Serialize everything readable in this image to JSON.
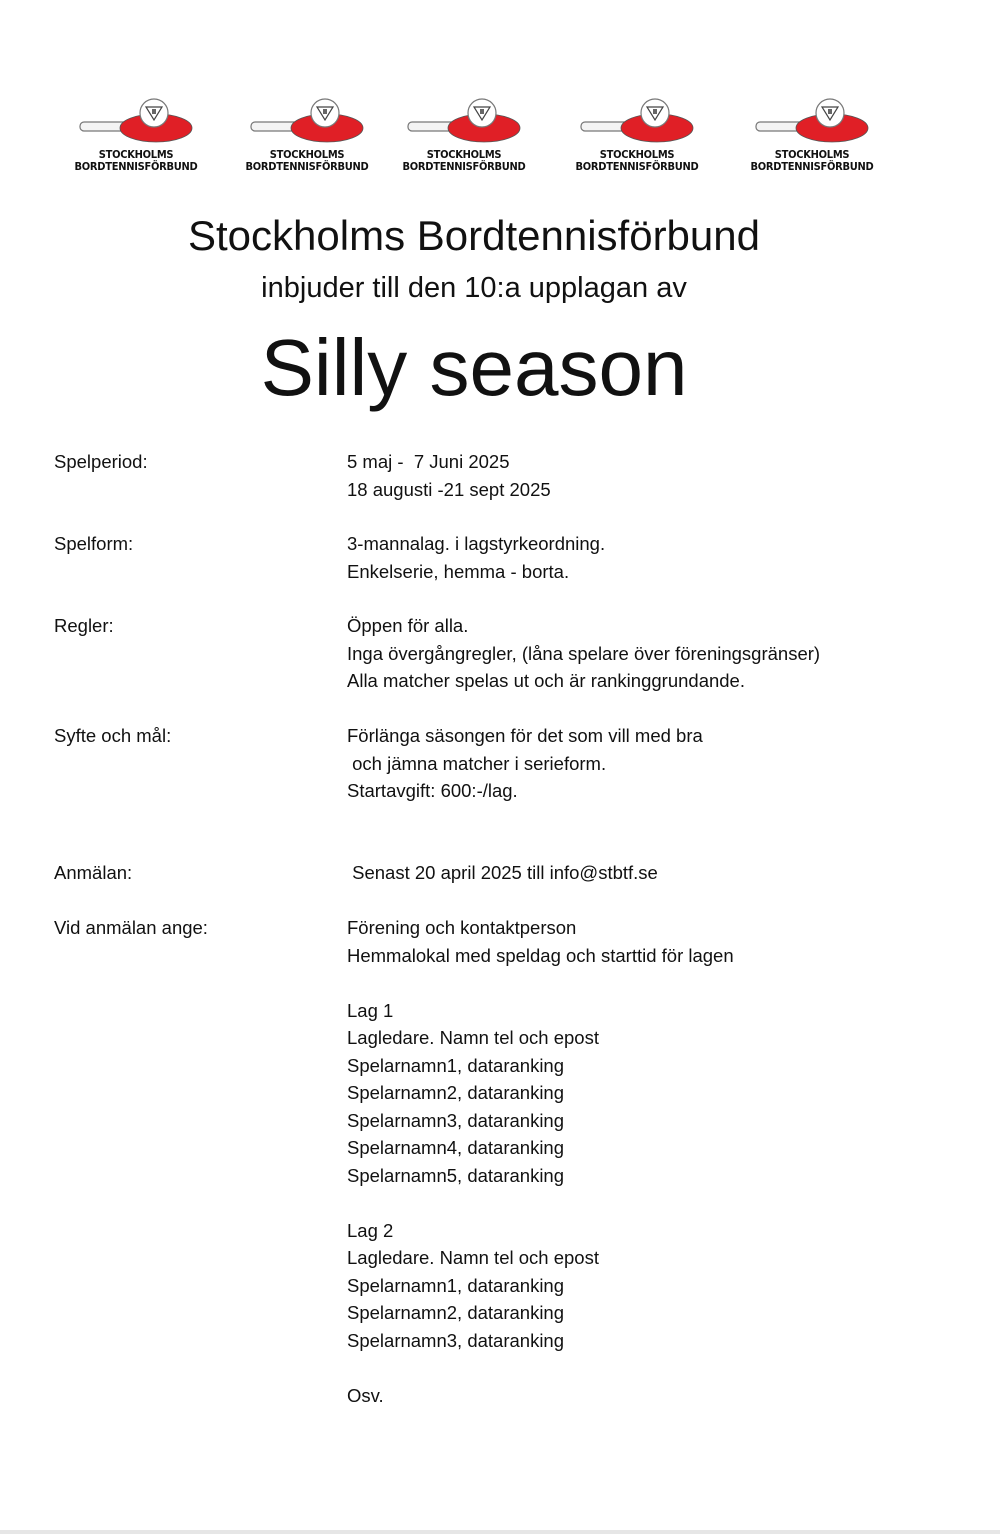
{
  "logos": [
    {
      "line1": "STOCKHOLMS",
      "line2": "BORDTENNISFÖRBUND"
    },
    {
      "line1": "STOCKHOLMS",
      "line2": "BORDTENNISFÖRBUND"
    },
    {
      "line1": "STOCKHOLMS",
      "line2": "BORDTENNISFÖRBUND"
    },
    {
      "line1": "STOCKHOLMS",
      "line2": "BORDTENNISFÖRBUND"
    },
    {
      "line1": "STOCKHOLMS",
      "line2": "BORDTENNISFÖRBUND"
    }
  ],
  "colors": {
    "logo_red": "#e01f26"
  },
  "header": {
    "title": "Stockholms Bordtennisförbund",
    "subtitle": "inbjuder till den 10:a upplagan av",
    "event": "Silly season"
  },
  "sections": [
    {
      "label": "Spelperiod:",
      "lines": [
        "5 maj -  7 Juni 2025",
        "18 augusti -21 sept 2025"
      ]
    },
    {
      "label": "Spelform:",
      "lines": [
        "3-mannalag. i lagstyrkeordning.",
        "Enkelserie, hemma - borta."
      ]
    },
    {
      "label": "Regler:",
      "lines": [
        "Öppen för alla.",
        "Inga övergångregler, (låna spelare över föreningsgränser)",
        "Alla matcher spelas ut och är rankinggrundande."
      ]
    },
    {
      "label": "Syfte och mål:",
      "lines": [
        "Förlänga säsongen för det som vill med bra",
        " och jämna matcher i serieform.",
        "Startavgift: 600:-/lag."
      ]
    },
    {
      "label": "Anmälan:",
      "lines": [
        " Senast 20 april 2025 till info@stbtf.se"
      ]
    },
    {
      "label": "Vid anmälan ange:",
      "lines": [
        "Förening och kontaktperson",
        "Hemmalokal med speldag och starttid för lagen",
        "",
        "Lag 1",
        "Lagledare. Namn tel och epost",
        "Spelarnamn1, dataranking",
        "Spelarnamn2, dataranking",
        "Spelarnamn3, dataranking",
        "Spelarnamn4, dataranking",
        "Spelarnamn5, dataranking",
        "",
        "Lag 2",
        "Lagledare. Namn tel och epost",
        "Spelarnamn1, dataranking",
        "Spelarnamn2, dataranking",
        "Spelarnamn3, dataranking",
        "",
        "Osv."
      ]
    }
  ]
}
